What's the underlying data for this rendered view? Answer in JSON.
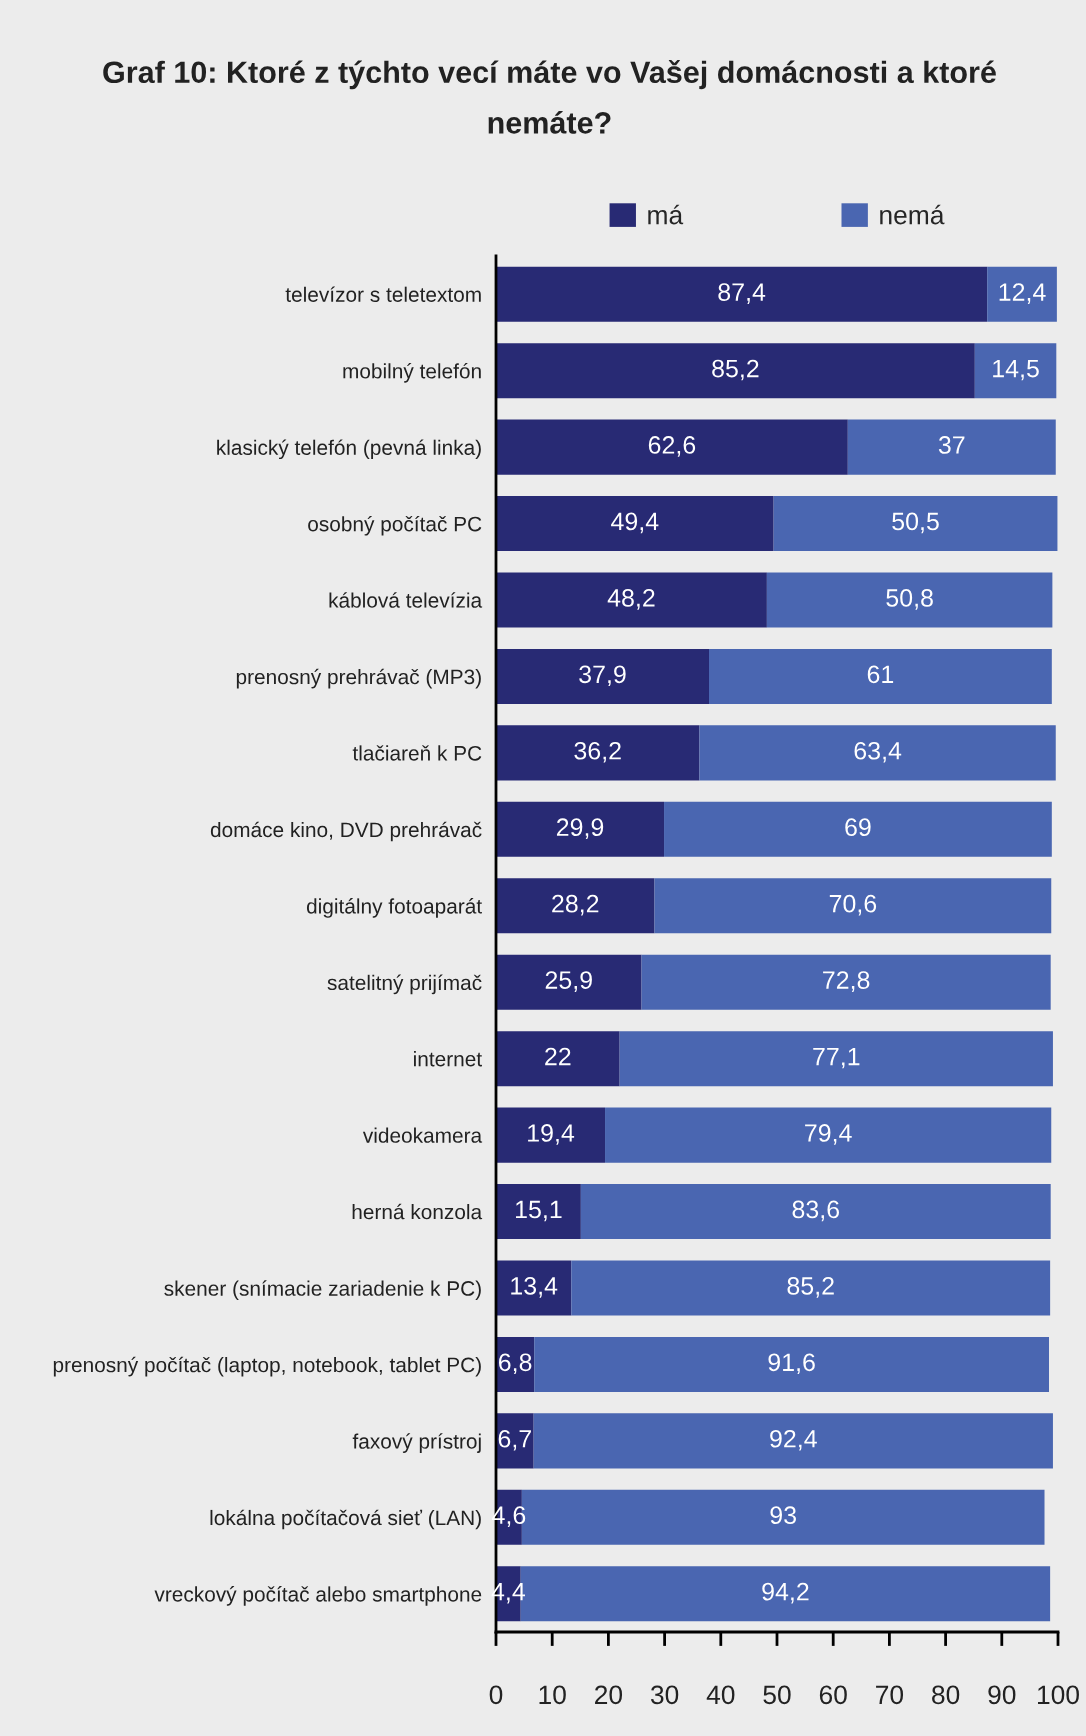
{
  "chart_data": {
    "type": "bar",
    "orientation": "horizontal",
    "stacked": true,
    "title": "Graf 10: Ktoré z týchto vecí máte vo Vašej domácnosti a ktoré nemáte?",
    "categories": [
      "televízor s teletextom",
      "mobilný telefón",
      "klasický telefón (pevná linka)",
      "osobný počítač PC",
      "káblová televízia",
      "prenosný prehrávač (MP3)",
      "tlačiareň k PC",
      "domáce kino, DVD prehrávač",
      "digitálny fotoaparát",
      "satelitný prijímač",
      "internet",
      "videokamera",
      "herná konzola",
      "skener (snímacie zariadenie k PC)",
      "prenosný počítač (laptop, notebook, tablet PC)",
      "faxový prístroj",
      "lokálna počítačová sieť (LAN)",
      "vreckový počítač alebo smartphone"
    ],
    "series": [
      {
        "name": "má",
        "color": "#282a74",
        "values": [
          87.4,
          85.2,
          62.6,
          49.4,
          48.2,
          37.9,
          36.2,
          29.9,
          28.2,
          25.9,
          22,
          19.4,
          15.1,
          13.4,
          6.8,
          6.7,
          4.6,
          4.4
        ],
        "value_labels": [
          "87,4",
          "85,2",
          "62,6",
          "49,4",
          "48,2",
          "37,9",
          "36,2",
          "29,9",
          "28,2",
          "25,9",
          "22",
          "19,4",
          "15,1",
          "13,4",
          "6,8",
          "6,7",
          "4,6",
          "4,4"
        ]
      },
      {
        "name": "nemá",
        "color": "#4a66b1",
        "values": [
          12.4,
          14.5,
          37,
          50.5,
          50.8,
          61,
          63.4,
          69,
          70.6,
          72.8,
          77.1,
          79.4,
          83.6,
          85.2,
          91.6,
          92.4,
          93,
          94.2
        ],
        "value_labels": [
          "12,4",
          "14,5",
          "37",
          "50,5",
          "50,8",
          "61",
          "63,4",
          "69",
          "70,6",
          "72,8",
          "77,1",
          "79,4",
          "83,6",
          "85,2",
          "91,6",
          "92,4",
          "93",
          "94,2"
        ]
      }
    ],
    "xlim": [
      0,
      100
    ],
    "xticks": [
      0,
      10,
      20,
      30,
      40,
      50,
      60,
      70,
      80,
      90,
      100
    ],
    "legend": "top"
  }
}
